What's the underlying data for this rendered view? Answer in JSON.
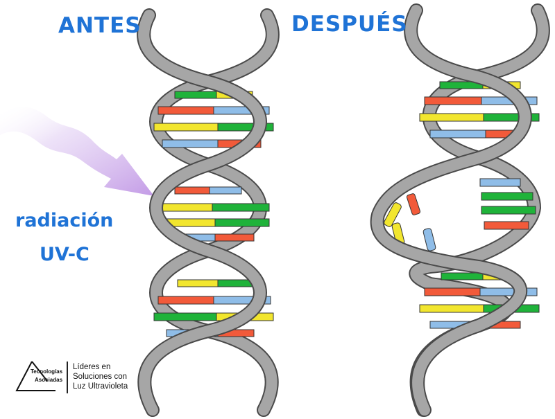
{
  "labels": {
    "before": "ANTES",
    "after": "DESPUÉS",
    "radiation_line1": "radiación",
    "radiation_line2": "UV-C"
  },
  "logo": {
    "brand_line1": "Tecnologías",
    "brand_line2": "Asociadas",
    "tagline": [
      "Líderes en",
      "Soluciones con",
      "Luz Ultravioleta"
    ]
  },
  "colors": {
    "label_blue": "#1f73d6",
    "strand_fill": "#a6a6a6",
    "strand_stroke": "#4a4a4a",
    "base_green": "#1fb33a",
    "base_yellow": "#f2e62e",
    "base_red": "#f25a3a",
    "base_blue": "#8fbde8",
    "arrow": "#c9a8e8"
  },
  "icons": {
    "uv_arrow": "uv-radiation-arrow-icon",
    "logo_mark": "triangle-logo-icon"
  }
}
